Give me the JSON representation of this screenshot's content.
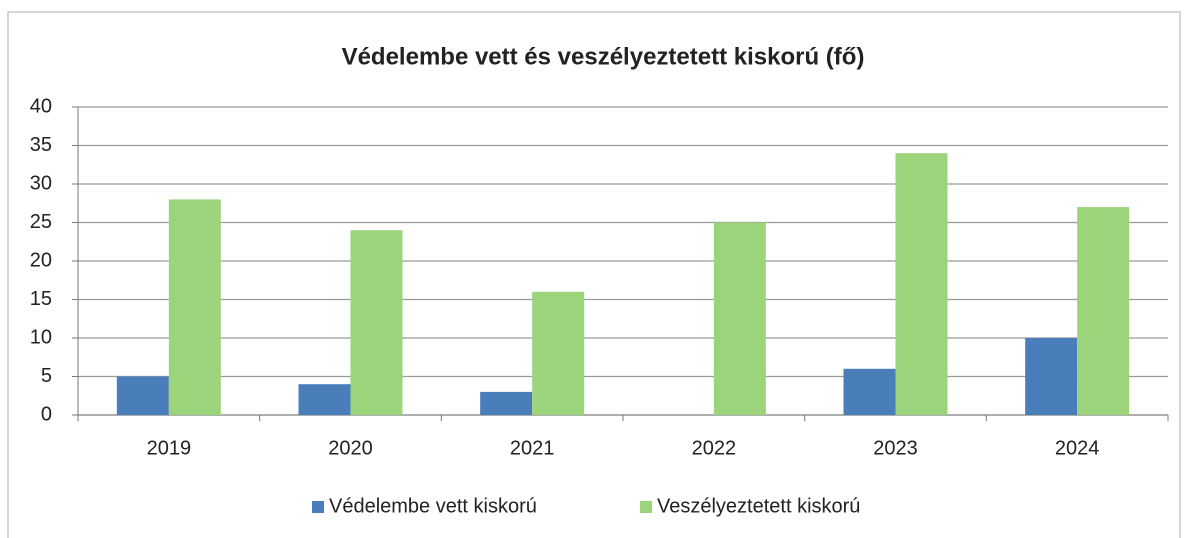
{
  "chart_data": {
    "type": "bar",
    "title": "Védelembe vett és veszélyeztetett kiskorú (fő)",
    "categories": [
      "2019",
      "2020",
      "2021",
      "2022",
      "2023",
      "2024"
    ],
    "series": [
      {
        "name": "Védelembe vett kiskorú",
        "color": "#4a7ebb",
        "values": [
          5,
          4,
          3,
          0,
          6,
          10
        ]
      },
      {
        "name": "Veszélyeztetett kiskorú",
        "color": "#9bd47a",
        "values": [
          28,
          24,
          16,
          25,
          34,
          27
        ]
      }
    ],
    "ylim": [
      0,
      40
    ],
    "yticks": [
      0,
      5,
      10,
      15,
      20,
      25,
      30,
      35,
      40
    ],
    "grid": true,
    "legend": "bottom"
  }
}
